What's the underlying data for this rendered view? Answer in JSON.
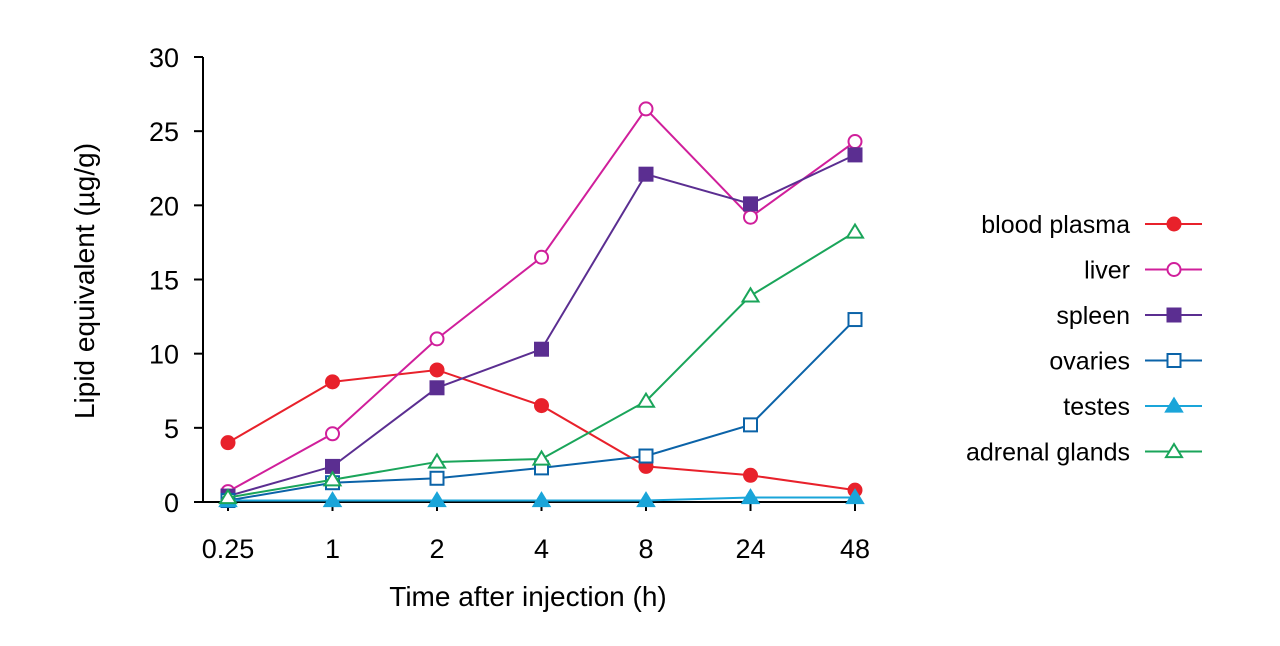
{
  "chart_data": {
    "type": "line",
    "xlabel": "Time after injection (h)",
    "ylabel": "Lipid equivalent (µg/g)",
    "categories": [
      "0.25",
      "1",
      "2",
      "4",
      "8",
      "24",
      "48"
    ],
    "ylim": [
      0,
      30
    ],
    "yticks": [
      "0",
      "5",
      "10",
      "15",
      "20",
      "25",
      "30"
    ],
    "grid": false,
    "legend_position": "right",
    "series": [
      {
        "name": "blood plasma",
        "color": "#e8212b",
        "marker": "circle",
        "filled": true,
        "values": [
          4.0,
          8.1,
          8.9,
          6.5,
          2.4,
          1.8,
          0.8
        ]
      },
      {
        "name": "liver",
        "color": "#d01f9b",
        "marker": "circle",
        "filled": false,
        "values": [
          0.7,
          4.6,
          11.0,
          16.5,
          26.5,
          19.2,
          24.3
        ]
      },
      {
        "name": "spleen",
        "color": "#5b2e91",
        "marker": "square",
        "filled": true,
        "values": [
          0.4,
          2.4,
          7.7,
          10.3,
          22.1,
          20.1,
          23.4
        ]
      },
      {
        "name": "ovaries",
        "color": "#0b63a8",
        "marker": "square",
        "filled": false,
        "values": [
          0.1,
          1.3,
          1.6,
          2.3,
          3.1,
          5.2,
          12.3
        ]
      },
      {
        "name": "testes",
        "color": "#1aa5d9",
        "marker": "triangle",
        "filled": true,
        "values": [
          0.1,
          0.1,
          0.1,
          0.1,
          0.1,
          0.3,
          0.3
        ]
      },
      {
        "name": "adrenal glands",
        "color": "#1aa55a",
        "marker": "triangle",
        "filled": false,
        "values": [
          0.3,
          1.5,
          2.7,
          2.9,
          6.8,
          13.9,
          18.2
        ]
      }
    ]
  }
}
